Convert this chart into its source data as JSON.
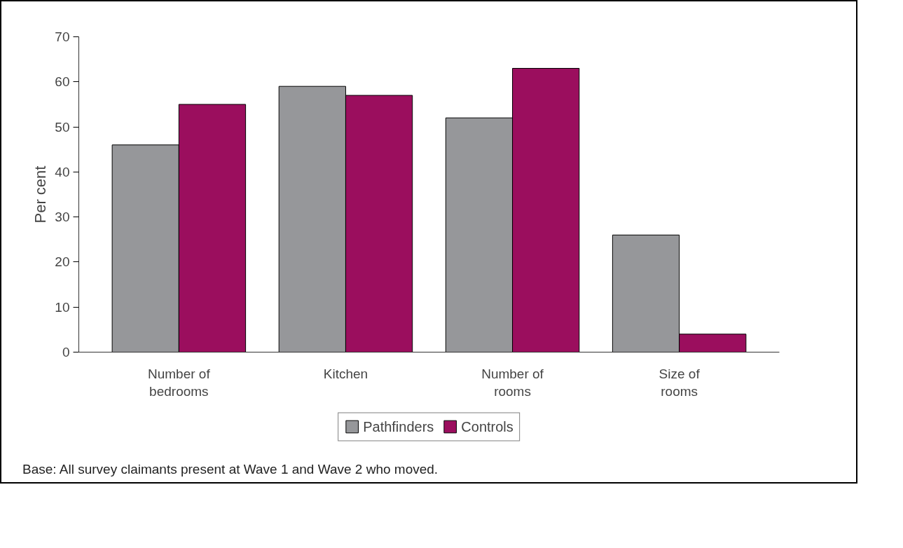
{
  "chart_data": {
    "type": "bar",
    "ylabel": "Per cent",
    "categories": [
      "Number of bedrooms",
      "Kitchen",
      "Number of rooms",
      "Size of rooms"
    ],
    "series": [
      {
        "name": "Pathfinders",
        "color": "#96979a",
        "values": [
          46,
          59,
          52,
          26
        ]
      },
      {
        "name": "Controls",
        "color": "#9b0e5e",
        "values": [
          55,
          57,
          63,
          4
        ]
      }
    ],
    "ylim": [
      0,
      70
    ],
    "yticks": [
      0,
      10,
      20,
      30,
      40,
      50,
      60,
      70
    ],
    "grid": false,
    "legend": "bottom",
    "annotations": [
      "Base: All survey claimants present at Wave 1 and Wave 2 who moved."
    ]
  }
}
